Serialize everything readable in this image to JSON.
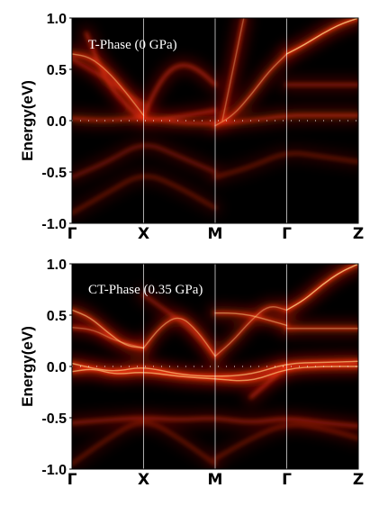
{
  "colors": {
    "background": "#000000",
    "band_glow": "#c01000",
    "band_mid": "#ff3a10",
    "band_core": "#ffd080",
    "divider": "#ffffff"
  },
  "chart_data": [
    {
      "type": "heatmap",
      "label": "T-Phase (0 GPa)",
      "ylabel": "Energy(eV)",
      "ylim": [
        -1.0,
        1.0
      ],
      "yticks": [
        "1.0",
        "0.5",
        "0.0",
        "-0.5",
        "-1.0"
      ],
      "kpoints": [
        "Γ",
        "X",
        "M",
        "Γ",
        "Z"
      ],
      "kpoint_positions": [
        0,
        1,
        2,
        3,
        4
      ],
      "fermi_level": 0.0,
      "bands": [
        {
          "x": [
            0,
            0.25,
            0.5,
            0.75,
            1.0
          ],
          "y": [
            0.65,
            0.62,
            0.48,
            0.28,
            0.05
          ],
          "intensity": 0.8
        },
        {
          "x": [
            1.0,
            1.2,
            1.4,
            1.6,
            1.8,
            2.0
          ],
          "y": [
            0.05,
            0.35,
            0.52,
            0.55,
            0.48,
            0.35
          ],
          "intensity": 0.6
        },
        {
          "x": [
            0.2,
            0.5,
            0.8,
            1.0,
            1.3,
            1.6,
            2.0
          ],
          "y": [
            0.85,
            0.35,
            0.12,
            0.0,
            0.02,
            0.05,
            0.1
          ],
          "intensity": 0.6
        },
        {
          "x": [
            2.0,
            2.25,
            2.5,
            2.75,
            3.0
          ],
          "y": [
            -0.05,
            0.05,
            0.25,
            0.48,
            0.65
          ],
          "intensity": 0.75
        },
        {
          "x": [
            2.1,
            2.25,
            2.4
          ],
          "y": [
            0.0,
            0.5,
            1.0
          ],
          "intensity": 0.7
        },
        {
          "x": [
            3.0,
            3.25,
            3.5,
            3.75,
            4.0
          ],
          "y": [
            0.65,
            0.74,
            0.85,
            0.94,
            1.0
          ],
          "intensity": 1.0
        },
        {
          "x": [
            0,
            0.5,
            1.0,
            1.5,
            2.0,
            2.5,
            3.0,
            3.5,
            4.0
          ],
          "y": [
            0.02,
            0.0,
            0.03,
            -0.02,
            -0.03,
            0.0,
            0.05,
            0.05,
            0.05
          ],
          "intensity": 0.65
        },
        {
          "x": [
            3.0,
            3.5,
            4.0
          ],
          "y": [
            0.35,
            0.35,
            0.35
          ],
          "intensity": 0.5
        },
        {
          "x": [
            0,
            0.5,
            1.0,
            1.5,
            2.0
          ],
          "y": [
            -0.55,
            -0.4,
            -0.2,
            -0.35,
            -0.5
          ],
          "intensity": 0.4
        },
        {
          "x": [
            0,
            0.5,
            1.0,
            1.5,
            2.0
          ],
          "y": [
            -0.9,
            -0.7,
            -0.5,
            -0.65,
            -0.85
          ],
          "intensity": 0.35
        },
        {
          "x": [
            2.0,
            2.5,
            3.0,
            3.5,
            4.0
          ],
          "y": [
            -0.55,
            -0.45,
            -0.3,
            -0.35,
            -0.4
          ],
          "intensity": 0.35
        },
        {
          "x": [
            0,
            0.5,
            1.0
          ],
          "y": [
            0.6,
            0.4,
            0.15
          ],
          "intensity": 0.5
        }
      ]
    },
    {
      "type": "heatmap",
      "label": "CT-Phase (0.35 GPa)",
      "ylabel": "Energy(eV)",
      "ylim": [
        -1.0,
        1.0
      ],
      "yticks": [
        "1.0",
        "0.5",
        "0.0",
        "-0.5",
        "-1.0"
      ],
      "kpoints": [
        "Γ",
        "X",
        "M",
        "Γ",
        "Z"
      ],
      "kpoint_positions": [
        0,
        1,
        2,
        3,
        4
      ],
      "fermi_level": 0.0,
      "bands": [
        {
          "x": [
            0,
            0.25,
            0.5,
            0.75,
            1.0
          ],
          "y": [
            0.55,
            0.48,
            0.33,
            0.2,
            0.18
          ],
          "intensity": 0.85
        },
        {
          "x": [
            0,
            0.3,
            0.6,
            1.0
          ],
          "y": [
            0.38,
            0.36,
            0.25,
            0.18
          ],
          "intensity": 0.7
        },
        {
          "x": [
            1.0,
            1.25,
            1.5,
            1.75,
            2.0
          ],
          "y": [
            0.18,
            0.4,
            0.5,
            0.35,
            0.1
          ],
          "intensity": 0.8
        },
        {
          "x": [
            1.0,
            1.3,
            1.6,
            2.0
          ],
          "y": [
            0.7,
            0.55,
            0.4,
            0.1
          ],
          "intensity": 0.5
        },
        {
          "x": [
            2.0,
            2.25,
            2.5,
            2.75,
            3.0
          ],
          "y": [
            0.1,
            0.25,
            0.45,
            0.6,
            0.55
          ],
          "intensity": 0.75
        },
        {
          "x": [
            2.0,
            2.25,
            2.5,
            2.75,
            3.0
          ],
          "y": [
            0.52,
            0.52,
            0.5,
            0.45,
            0.4
          ],
          "intensity": 0.8
        },
        {
          "x": [
            3.0,
            3.25,
            3.5,
            3.75,
            4.0
          ],
          "y": [
            0.55,
            0.65,
            0.8,
            0.92,
            1.0
          ],
          "intensity": 1.0
        },
        {
          "x": [
            3.0,
            3.5,
            4.0
          ],
          "y": [
            0.37,
            0.37,
            0.37
          ],
          "intensity": 0.75
        },
        {
          "x": [
            0,
            0.3,
            0.6,
            1.0,
            1.5,
            2.0,
            2.5,
            3.0,
            3.5,
            4.0
          ],
          "y": [
            0.03,
            -0.02,
            -0.05,
            0.0,
            -0.08,
            -0.1,
            -0.08,
            0.03,
            0.04,
            0.05
          ],
          "intensity": 0.9
        },
        {
          "x": [
            0,
            0.3,
            0.6,
            1.0,
            1.5,
            2.0,
            2.5,
            3.0,
            3.5,
            4.0
          ],
          "y": [
            -0.05,
            -0.02,
            -0.08,
            -0.05,
            -0.1,
            -0.12,
            -0.15,
            -0.02,
            0.0,
            0.0
          ],
          "intensity": 0.9
        },
        {
          "x": [
            2.5,
            2.75,
            3.0
          ],
          "y": [
            -0.3,
            -0.15,
            0.0
          ],
          "intensity": 0.6
        },
        {
          "x": [
            0,
            0.5,
            1.0,
            1.5,
            2.0,
            2.5,
            3.0,
            3.5,
            4.0
          ],
          "y": [
            -0.55,
            -0.52,
            -0.5,
            -0.52,
            -0.5,
            -0.55,
            -0.5,
            -0.55,
            -0.58
          ],
          "intensity": 0.5
        },
        {
          "x": [
            0,
            0.5,
            1.0,
            1.5,
            2.0
          ],
          "y": [
            -0.95,
            -0.7,
            -0.5,
            -0.7,
            -0.95
          ],
          "intensity": 0.35
        },
        {
          "x": [
            2.0,
            2.5,
            3.0,
            3.5,
            4.0
          ],
          "y": [
            -0.9,
            -0.7,
            -0.55,
            -0.6,
            -0.7
          ],
          "intensity": 0.35
        }
      ]
    }
  ]
}
